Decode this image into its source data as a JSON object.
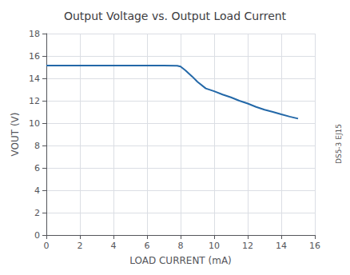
{
  "chart_data": {
    "type": "line",
    "title": "Output Voltage vs. Output Load Current",
    "xlabel": "LOAD CURRENT (mA)",
    "ylabel": "VOUT (V)",
    "annotations": [
      "DS5-3 EJ15"
    ],
    "x": [
      0,
      0.5,
      1,
      2,
      3,
      4,
      5,
      6,
      7,
      7.8,
      8.0,
      8.3,
      8.7,
      9.0,
      9.5,
      10.0,
      10.5,
      11.0,
      11.5,
      12.0,
      12.5,
      13.0,
      13.5,
      14.0,
      14.5,
      15.0
    ],
    "values": [
      15.15,
      15.15,
      15.15,
      15.15,
      15.15,
      15.15,
      15.15,
      15.15,
      15.15,
      15.13,
      15.05,
      14.7,
      14.15,
      13.7,
      13.1,
      12.85,
      12.55,
      12.3,
      12.0,
      11.75,
      11.45,
      11.2,
      11.0,
      10.78,
      10.58,
      10.4
    ],
    "color": "#2368a8",
    "xlim": [
      0,
      16
    ],
    "xticks": [
      0,
      2,
      4,
      6,
      8,
      10,
      12,
      14,
      16
    ],
    "ylim": [
      0,
      18
    ],
    "yticks": [
      0,
      2,
      4,
      6,
      8,
      10,
      12,
      14,
      16,
      18
    ],
    "grid": true
  }
}
